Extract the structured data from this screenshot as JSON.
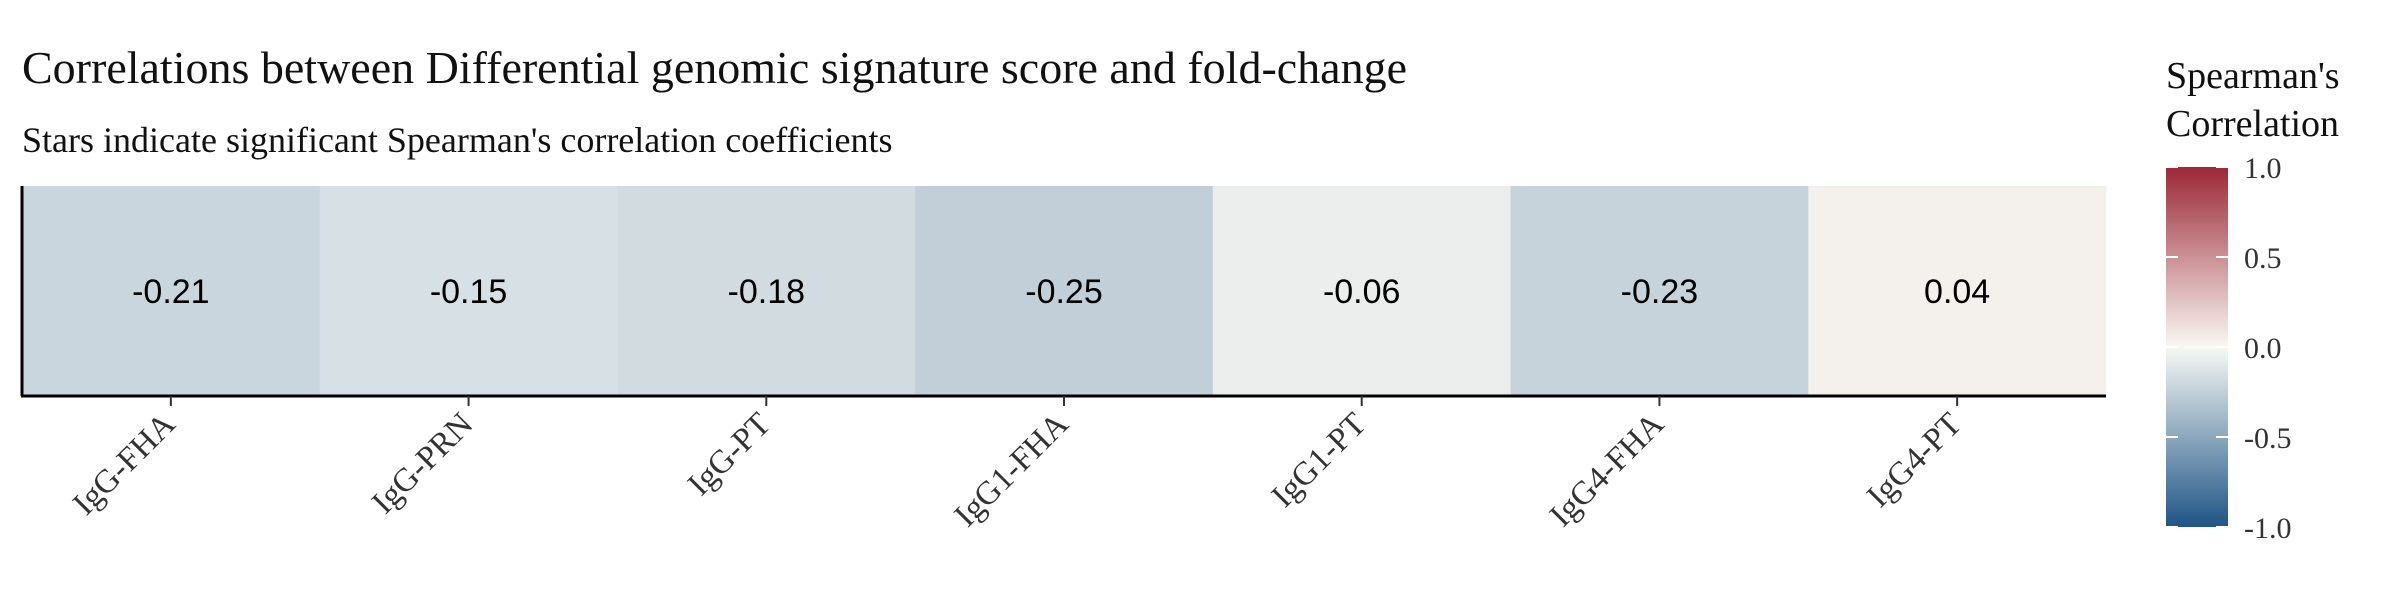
{
  "chart_data": {
    "type": "heatmap",
    "title": "Correlations between Differential genomic signature score and fold-change",
    "subtitle": "Stars indicate significant Spearman's correlation coefficients",
    "categories": [
      "IgG-FHA",
      "IgG-PRN",
      "IgG-PT",
      "IgG1-FHA",
      "IgG1-PT",
      "IgG4-FHA",
      "IgG4-PT"
    ],
    "values": [
      -0.21,
      -0.15,
      -0.18,
      -0.25,
      -0.06,
      -0.23,
      0.04
    ],
    "value_labels": [
      "-0.21",
      "-0.15",
      "-0.18",
      "-0.25",
      "-0.06",
      "-0.23",
      "0.04"
    ],
    "legend": {
      "title_line1": "Spearman's",
      "title_line2": "Correlation",
      "ticks": [
        1.0,
        0.5,
        0.0,
        -0.5,
        -1.0
      ],
      "tick_labels": [
        "1.0",
        "0.5",
        "0.0",
        "-0.5",
        "-1.0"
      ],
      "range": [
        -1.0,
        1.0
      ],
      "placement": "right"
    },
    "colors": {
      "low": "#1f5586",
      "mid": "#f8f8f4",
      "high": "#9c2836"
    }
  }
}
